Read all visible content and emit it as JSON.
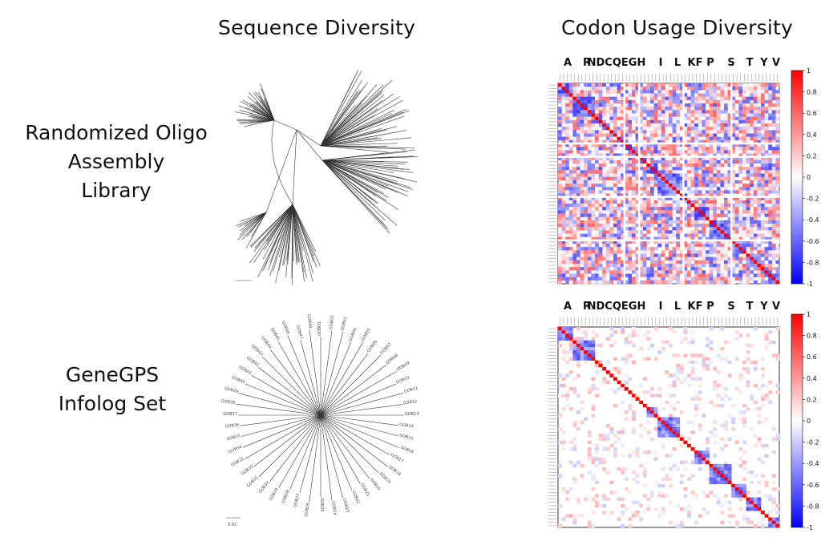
{
  "headers": {
    "sequence_diversity": "Sequence Diversity",
    "codon_usage_diversity": "Codon Usage Diversity"
  },
  "rows": [
    {
      "label_lines": [
        "Randomized Oligo",
        "Assembly",
        "Library"
      ]
    },
    {
      "label_lines": [
        "GeneGPS",
        "Infolog Set"
      ]
    }
  ],
  "amino_acid_labels": [
    "A",
    "R",
    "NDCQEGH",
    "I",
    "L",
    "KF",
    "P",
    "S",
    "T",
    "Y",
    "V"
  ],
  "tree2_scale_label": "0.02",
  "tree2_tip_labels": [
    "GOBO1",
    "GOB02",
    "GOB03",
    "GOB04",
    "GOB05",
    "GOB06",
    "GOB07",
    "GOB08",
    "GOB09",
    "GOB10",
    "GOB11",
    "GOB12",
    "GOB13",
    "GOB14",
    "GOB15",
    "GOB16",
    "GOB17",
    "GOB18",
    "GOB19",
    "GOB20",
    "GOB21",
    "GOB22",
    "GOB23",
    "GOB24",
    "GOB25",
    "GOB26",
    "GOB27",
    "GOB28",
    "GOB29",
    "GOB30",
    "GOB31",
    "GOB32",
    "GOB33",
    "GOB34",
    "GOB35",
    "GOB36",
    "GOB37",
    "GOB38",
    "GOB39",
    "GOB40",
    "GOB41",
    "GOB42",
    "GOB43",
    "GOB44",
    "GOB45",
    "GOB46",
    "GOB47",
    "GOB48"
  ],
  "chart_data": [
    {
      "type": "heatmap",
      "title": "",
      "column_groups": [
        "A",
        "R",
        "NDCQEGH",
        "I",
        "L",
        "KF",
        "P",
        "S",
        "T",
        "Y",
        "V"
      ],
      "colorbar": {
        "min": -1,
        "max": 1,
        "ticks": [
          1,
          0.8,
          0.6,
          0.4,
          0.2,
          0,
          -0.2,
          -0.4,
          -0.6,
          -0.8,
          -1
        ],
        "low_color": "#0000ff",
        "mid_color": "#ffffff",
        "high_color": "#ff0000"
      },
      "description": "dense mixed positive and negative correlations"
    },
    {
      "type": "heatmap",
      "title": "",
      "column_groups": [
        "A",
        "R",
        "NDCQEGH",
        "I",
        "L",
        "KF",
        "P",
        "S",
        "T",
        "Y",
        "V"
      ],
      "colorbar": {
        "min": -1,
        "max": 1,
        "ticks": [
          1,
          0.8,
          0.6,
          0.4,
          0.2,
          0,
          -0.2,
          -0.4,
          -0.6,
          -0.8,
          -1
        ],
        "low_color": "#0000ff",
        "mid_color": "#ffffff",
        "high_color": "#ff0000"
      },
      "description": "mostly near-zero off-diagonal correlations with strong diagonal"
    }
  ]
}
